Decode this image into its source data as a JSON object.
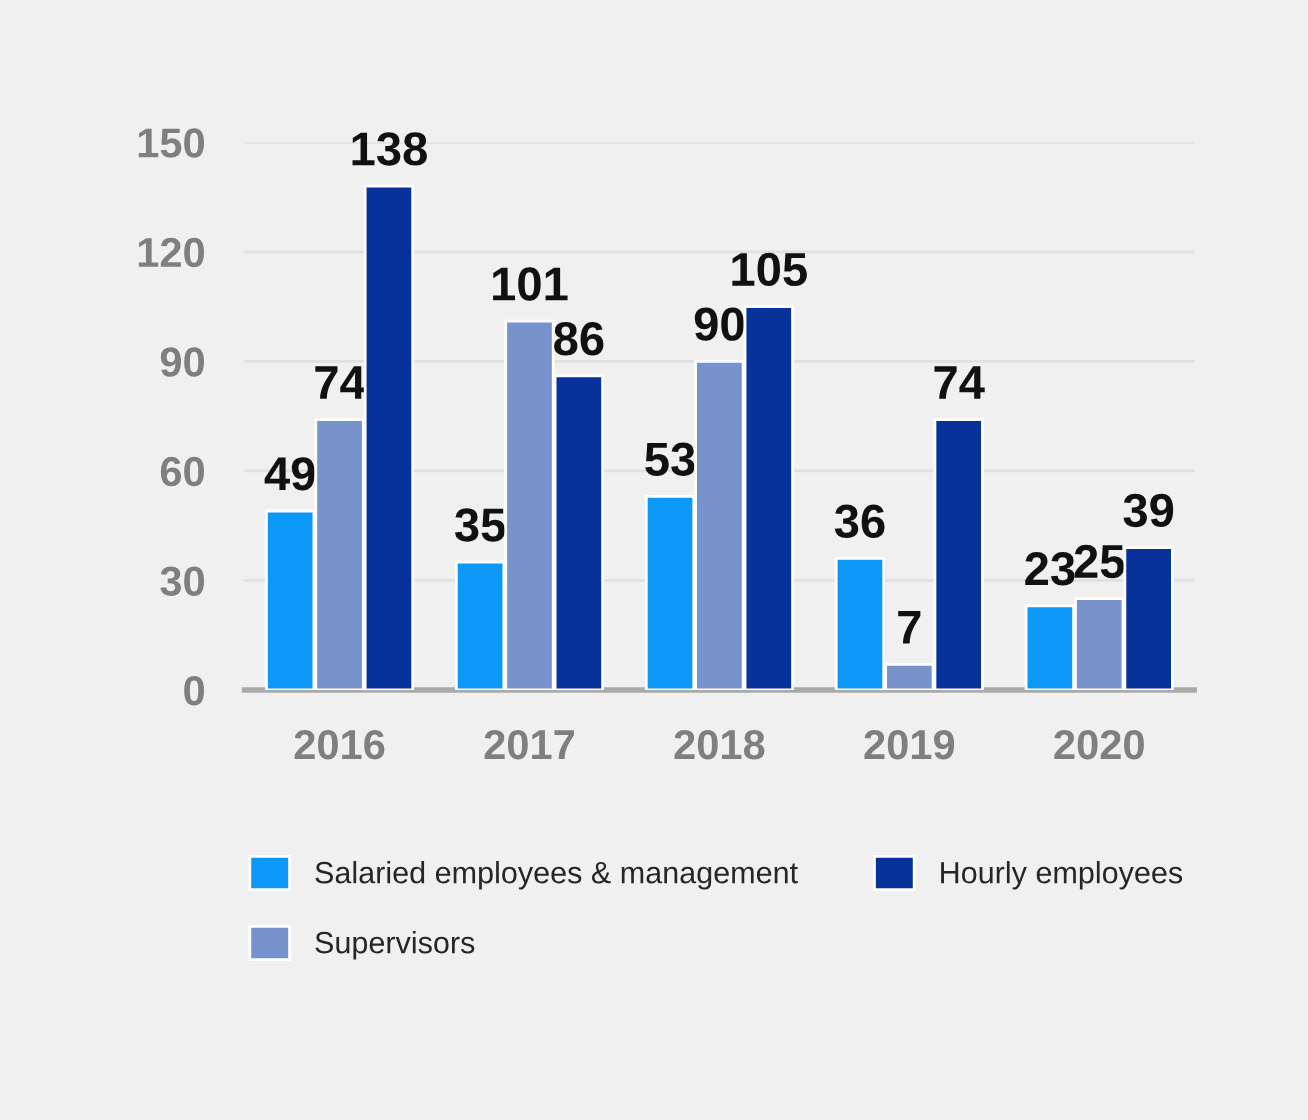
{
  "chart_data": {
    "type": "bar",
    "categories": [
      "2016",
      "2017",
      "2018",
      "2019",
      "2020"
    ],
    "series": [
      {
        "name": "Salaried employees & management",
        "color": "#0d97f7",
        "values": [
          49,
          35,
          53,
          36,
          23
        ]
      },
      {
        "name": "Supervisors",
        "color": "#7893cc",
        "values": [
          74,
          101,
          90,
          7,
          25
        ]
      },
      {
        "name": "Hourly employees",
        "color": "#06329a",
        "values": [
          138,
          86,
          105,
          74,
          39
        ]
      }
    ],
    "ylim": [
      0,
      150
    ],
    "yticks": [
      0,
      30,
      60,
      90,
      120,
      150
    ],
    "grid": "y",
    "legend": "bottom",
    "data_labels": true
  }
}
